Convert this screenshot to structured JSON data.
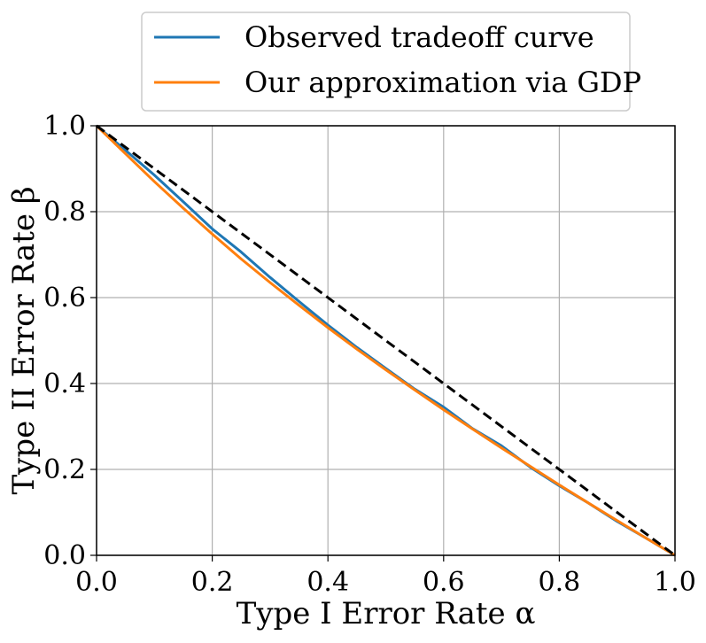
{
  "chart_data": {
    "type": "line",
    "title": "",
    "xlabel": "Type I Error Rate α",
    "ylabel": "Type II Error Rate β",
    "xlim": [
      0.0,
      1.0
    ],
    "ylim": [
      0.0,
      1.0
    ],
    "xticks": [
      "0.0",
      "0.2",
      "0.4",
      "0.6",
      "0.8",
      "1.0"
    ],
    "yticks": [
      "0.0",
      "0.2",
      "0.4",
      "0.6",
      "0.8",
      "1.0"
    ],
    "grid": true,
    "legend_position": "top-center",
    "series": [
      {
        "name": "Observed tradeoff curve",
        "color": "#1f77b4",
        "x": [
          0.0,
          0.05,
          0.1,
          0.15,
          0.2,
          0.25,
          0.3,
          0.35,
          0.4,
          0.45,
          0.5,
          0.55,
          0.6,
          0.65,
          0.7,
          0.75,
          0.8,
          0.85,
          0.9,
          0.95,
          1.0
        ],
        "y": [
          1.0,
          0.943,
          0.885,
          0.823,
          0.76,
          0.706,
          0.647,
          0.591,
          0.536,
          0.484,
          0.435,
          0.387,
          0.345,
          0.295,
          0.255,
          0.205,
          0.162,
          0.122,
          0.079,
          0.04,
          0.0
        ]
      },
      {
        "name": "Our approximation via GDP",
        "color": "#ff7f0e",
        "x": [
          0.0,
          0.05,
          0.1,
          0.15,
          0.2,
          0.25,
          0.3,
          0.35,
          0.4,
          0.45,
          0.5,
          0.55,
          0.6,
          0.65,
          0.7,
          0.75,
          0.8,
          0.85,
          0.9,
          0.95,
          1.0
        ],
        "y": [
          1.0,
          0.935,
          0.87,
          0.808,
          0.748,
          0.69,
          0.635,
          0.582,
          0.53,
          0.48,
          0.432,
          0.385,
          0.339,
          0.294,
          0.25,
          0.207,
          0.164,
          0.122,
          0.081,
          0.04,
          0.0
        ]
      },
      {
        "name": "",
        "color": "#000000",
        "dashed": true,
        "x": [
          0.0,
          1.0
        ],
        "y": [
          1.0,
          0.0
        ]
      }
    ]
  }
}
